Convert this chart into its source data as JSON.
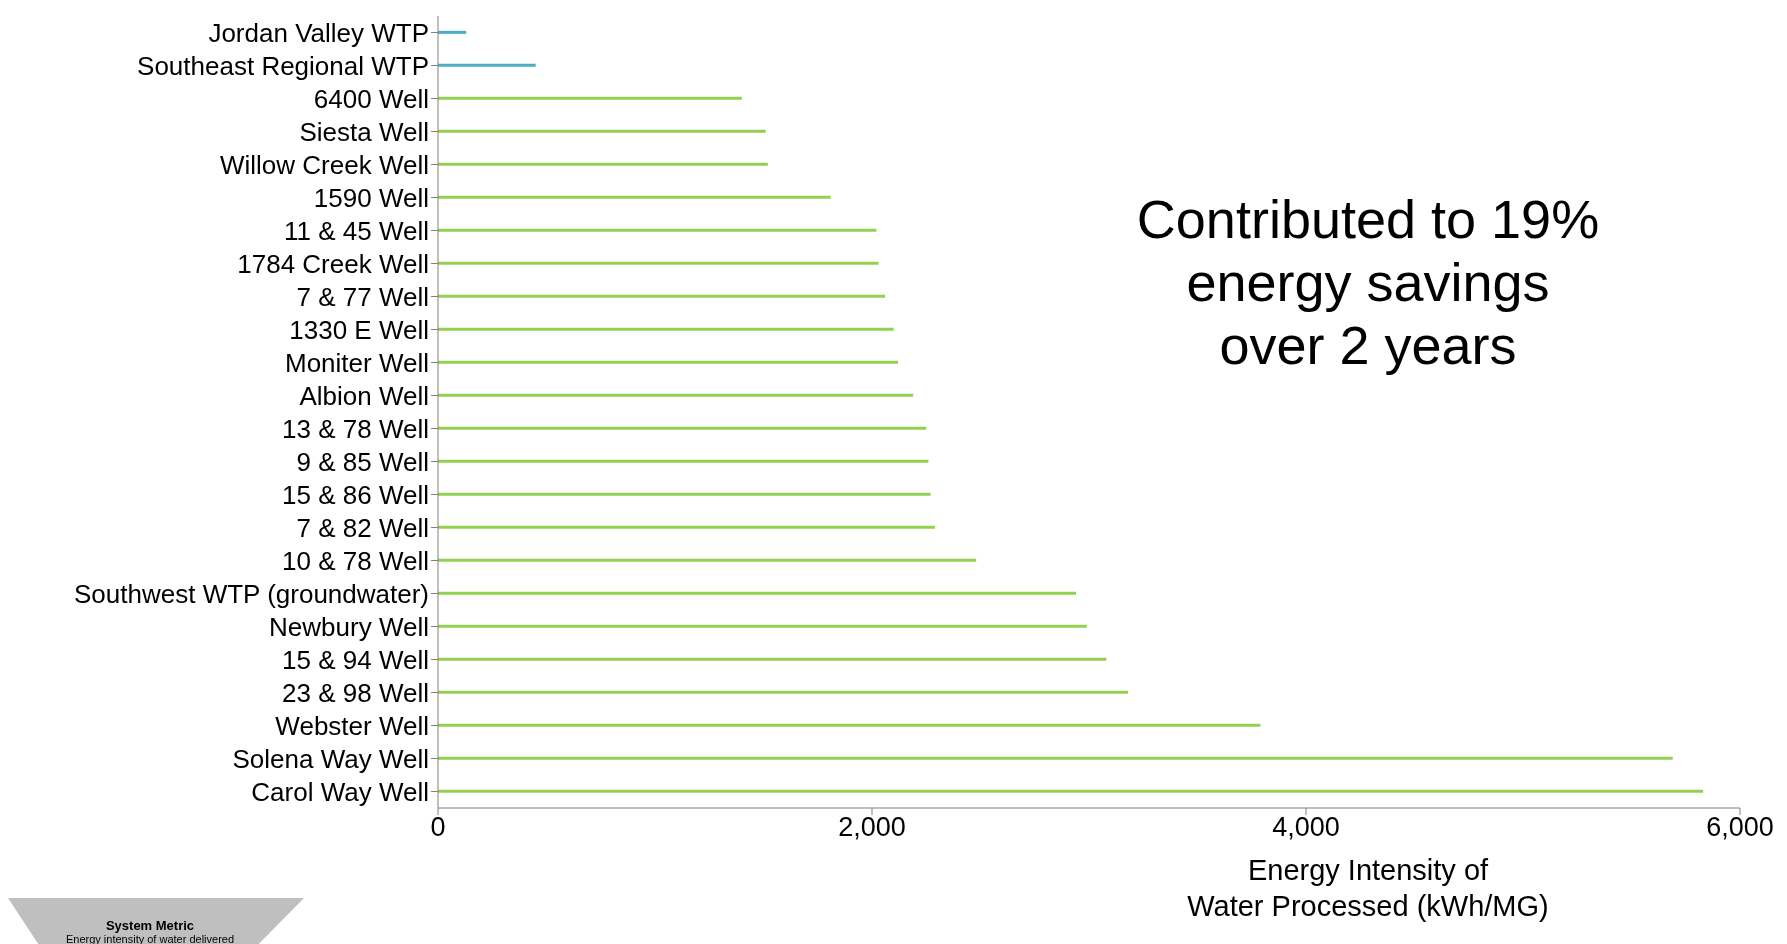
{
  "chart_data": {
    "type": "bar",
    "orientation": "horizontal",
    "xlabel": "Energy Intensity of\nWater Processed (kWh/MG)",
    "categories": [
      "Jordan Valley WTP",
      "Southeast Regional WTP",
      "6400 Well",
      "Siesta Well",
      "Willow Creek Well",
      "1590 Well",
      "11 & 45 Well",
      "1784 Creek Well",
      "7 & 77 Well",
      "1330 E Well",
      "Moniter Well",
      "Albion Well",
      "13 & 78 Well",
      "9 & 85 Well",
      "15 & 86 Well",
      "7 & 82 Well",
      "10 & 78 Well",
      "Southwest WTP (groundwater)",
      "Newbury Well",
      "15 & 94 Well",
      "23 & 98 Well",
      "Webster Well",
      "Solena Way Well",
      "Carol Way Well"
    ],
    "values": [
      130,
      450,
      1400,
      1510,
      1520,
      1810,
      2020,
      2030,
      2060,
      2100,
      2120,
      2190,
      2250,
      2260,
      2270,
      2290,
      2480,
      2940,
      2990,
      3080,
      3180,
      3790,
      5690,
      5830
    ],
    "colors": [
      "#4bacc6",
      "#4bacc6",
      "#92d050",
      "#92d050",
      "#92d050",
      "#92d050",
      "#92d050",
      "#92d050",
      "#92d050",
      "#92d050",
      "#92d050",
      "#92d050",
      "#92d050",
      "#92d050",
      "#92d050",
      "#92d050",
      "#92d050",
      "#92d050",
      "#92d050",
      "#92d050",
      "#92d050",
      "#92d050",
      "#92d050",
      "#92d050"
    ],
    "xlim": [
      0,
      6000
    ],
    "xticks": [
      0,
      {
        "value": 2000,
        "label": "2,000"
      },
      {
        "value": 4000,
        "label": "4,000"
      },
      {
        "value": 6000,
        "label": "6,000"
      }
    ],
    "grid": false,
    "legend": false,
    "annotations": [
      "Contributed to 19%\nenergy savings\nover 2 years",
      "System Metric",
      "Energy intensity of water delivered"
    ]
  }
}
